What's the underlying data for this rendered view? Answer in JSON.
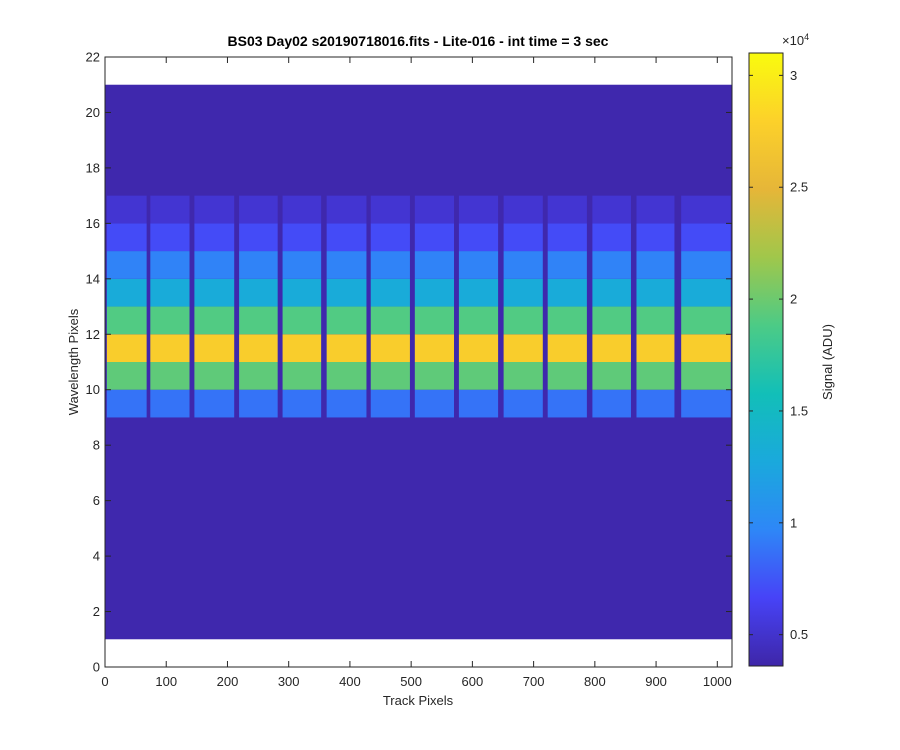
{
  "chart_data": {
    "type": "heatmap",
    "title": "BS03 Day02  s20190718016.fits - Lite-016 - int time = 3 sec",
    "xlabel": "Track Pixels",
    "ylabel": "Wavelength Pixels",
    "xlim": [
      0,
      1024
    ],
    "ylim": [
      0,
      22
    ],
    "xticks": [
      0,
      100,
      200,
      300,
      400,
      500,
      600,
      700,
      800,
      900,
      1000
    ],
    "yticks": [
      0,
      2,
      4,
      6,
      8,
      10,
      12,
      14,
      16,
      18,
      20,
      22
    ],
    "data_x_range": [
      0,
      1024
    ],
    "data_y_range": [
      1,
      21
    ],
    "background_value": 3800,
    "colormap": "parula",
    "colors": {
      "parula_stops": [
        "#3e26a8",
        "#4743f7",
        "#2e87f7",
        "#1aa9dc",
        "#12bfb8",
        "#4ccb86",
        "#a0c74b",
        "#e6b638",
        "#fcd12a",
        "#f9fb0e"
      ]
    },
    "grid": false,
    "colorbar": {
      "label": "Signal (ADU)",
      "exponent_label": "×10",
      "exponent": "4",
      "min": 3600,
      "max": 31000,
      "ticks": [
        0.5,
        1,
        1.5,
        2,
        2.5,
        3
      ],
      "tick_labels": [
        "0.5",
        "1",
        "1.5",
        "2",
        "2.5",
        "3"
      ],
      "tick_multiplier": 10000
    },
    "bands": [
      {
        "x_start": 3,
        "x_end": 68
      },
      {
        "x_start": 74,
        "x_end": 138
      },
      {
        "x_start": 146,
        "x_end": 211
      },
      {
        "x_start": 219,
        "x_end": 282
      },
      {
        "x_start": 290,
        "x_end": 353
      },
      {
        "x_start": 362,
        "x_end": 427
      },
      {
        "x_start": 434,
        "x_end": 498
      },
      {
        "x_start": 506,
        "x_end": 570
      },
      {
        "x_start": 578,
        "x_end": 642
      },
      {
        "x_start": 651,
        "x_end": 715
      },
      {
        "x_start": 723,
        "x_end": 787
      },
      {
        "x_start": 796,
        "x_end": 859
      },
      {
        "x_start": 868,
        "x_end": 930
      },
      {
        "x_start": 941,
        "x_end": 1022
      }
    ],
    "band_rows": [
      {
        "y_from": 9,
        "y_to": 10,
        "value": 8800
      },
      {
        "y_from": 10,
        "y_to": 11,
        "value": 19500
      },
      {
        "y_from": 11,
        "y_to": 12,
        "value": 27500
      },
      {
        "y_from": 12,
        "y_to": 13,
        "value": 19000
      },
      {
        "y_from": 13,
        "y_to": 14,
        "value": 13000
      },
      {
        "y_from": 14,
        "y_to": 15,
        "value": 9500
      },
      {
        "y_from": 15,
        "y_to": 16,
        "value": 7000
      },
      {
        "y_from": 16,
        "y_to": 17,
        "value": 5200
      }
    ]
  }
}
